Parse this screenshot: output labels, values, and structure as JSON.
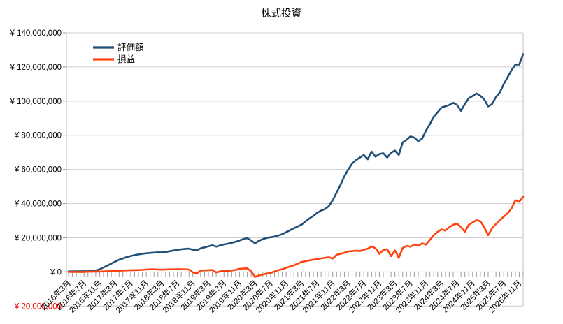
{
  "title": "株式投資",
  "legend": {
    "position": "top-left-inside",
    "items": [
      {
        "label": "評価額",
        "color": "#1f4e79"
      },
      {
        "label": "損益",
        "color": "#ff420e"
      }
    ]
  },
  "y_axis": {
    "tick_labels": [
      "¥ 140,000,000",
      "¥ 120,000,000",
      "¥ 100,000,000",
      "¥ 80,000,000",
      "¥ 60,000,000",
      "¥ 40,000,000",
      "¥ 20,000,000",
      "¥ 0",
      "- ¥ 20,000,000"
    ],
    "tick_values": [
      140000000,
      120000000,
      100000000,
      80000000,
      60000000,
      40000000,
      20000000,
      0,
      -20000000
    ],
    "negative_label_color": "#ff0000",
    "label_color": "#000000"
  },
  "x_axis": {
    "tick_labels": [
      "2016年3月",
      "2016年7月",
      "2016年11月",
      "2017年3月",
      "2017年7月",
      "2017年11月",
      "2018年3月",
      "2018年7月",
      "2018年11月",
      "2019年3月",
      "2019年7月",
      "2019年11月",
      "2020年3月",
      "2020年7月",
      "2020年11月",
      "2021年3月",
      "2021年7月",
      "2021年11月",
      "2022年3月",
      "2022年7月",
      "2022年11月",
      "2023年3月",
      "2023年7月",
      "2023年11月",
      "2024年3月",
      "2024年7月",
      "2024年11月",
      "2025年3月",
      "2025年7月",
      "2025年11月"
    ],
    "label_interval": 4,
    "minor_tick_interval_months": 1
  },
  "chart_data": {
    "type": "line",
    "title": "株式投資",
    "x_start": "2016年3月",
    "x_interval_months": 1,
    "point_count": 118,
    "ylim": [
      -20000000,
      140000000
    ],
    "y_step": 20000000,
    "grid": "horizontal",
    "legend_position": "top-left-inside",
    "series": [
      {
        "name": "評価額",
        "color": "#1f4e79",
        "values": [
          300000,
          300000,
          350000,
          350000,
          400000,
          400000,
          500000,
          800000,
          1500000,
          2600000,
          3700000,
          4800000,
          6000000,
          7100000,
          7900000,
          8700000,
          9300000,
          9800000,
          10200000,
          10600000,
          10900000,
          11100000,
          11300000,
          11500000,
          11400000,
          11700000,
          12100000,
          12500000,
          12900000,
          13200000,
          13500000,
          13600000,
          12900000,
          12600000,
          13800000,
          14400000,
          15000000,
          15600000,
          14800000,
          15500000,
          16100000,
          16500000,
          17000000,
          17600000,
          18400000,
          19200000,
          19800000,
          18400000,
          16700000,
          18200000,
          19200000,
          19900000,
          20300000,
          20700000,
          21300000,
          22100000,
          23200000,
          24400000,
          25600000,
          26600000,
          27700000,
          29600000,
          31300000,
          32800000,
          34600000,
          35900000,
          36800000,
          38500000,
          42000000,
          46500000,
          51000000,
          56000000,
          60000000,
          63500000,
          65500000,
          67000000,
          68500000,
          66000000,
          70500000,
          67500000,
          69000000,
          69500000,
          67000000,
          69800000,
          71000000,
          68500000,
          75900000,
          77300000,
          79300000,
          78600000,
          76600000,
          78000000,
          82700000,
          86500000,
          90900000,
          93500000,
          96300000,
          97000000,
          97700000,
          99000000,
          97700000,
          94300000,
          98300000,
          101700000,
          103000000,
          104500000,
          103100000,
          101000000,
          96900000,
          98300000,
          102400000,
          105100000,
          109900000,
          114000000,
          118100000,
          121400000,
          121400000,
          127500000
        ]
      },
      {
        "name": "損益",
        "color": "#ff420e",
        "values": [
          0,
          0,
          0,
          -100000,
          0,
          100000,
          100000,
          200000,
          200000,
          300000,
          400000,
          500000,
          600000,
          700000,
          800000,
          900000,
          1000000,
          1000000,
          1100000,
          1200000,
          1400000,
          1500000,
          1500000,
          1400000,
          1300000,
          1400000,
          1500000,
          1500000,
          1600000,
          1500000,
          1500000,
          1400000,
          -300000,
          -1000000,
          800000,
          900000,
          1000000,
          1100000,
          -300000,
          300000,
          700000,
          600000,
          800000,
          1200000,
          1800000,
          2000000,
          2100000,
          400000,
          -3000000,
          -2000000,
          -1500000,
          -1000000,
          -600000,
          200000,
          1000000,
          1600000,
          2400000,
          3100000,
          3800000,
          4800000,
          5800000,
          6300000,
          6800000,
          7200000,
          7500000,
          7900000,
          8300000,
          8600000,
          7800000,
          10000000,
          10600000,
          11200000,
          12000000,
          12200000,
          12400000,
          12200000,
          13000000,
          13600000,
          14900000,
          13800000,
          10600000,
          12800000,
          13300000,
          9200000,
          12600000,
          8200000,
          14000000,
          15300000,
          14700000,
          16000000,
          15300000,
          16700000,
          16000000,
          18800000,
          21500000,
          23500000,
          24900000,
          24200000,
          26200000,
          27600000,
          28300000,
          26200000,
          23500000,
          27600000,
          29000000,
          30300000,
          29600000,
          26200000,
          21500000,
          25600000,
          28000000,
          30300000,
          32300000,
          34400000,
          37100000,
          42000000,
          41000000,
          44000000
        ]
      }
    ]
  },
  "style": {
    "gridline_color": "#d0cece",
    "axis_color": "#bfbfbf",
    "tick_color": "#9a9a9a",
    "background": "#ffffff"
  }
}
